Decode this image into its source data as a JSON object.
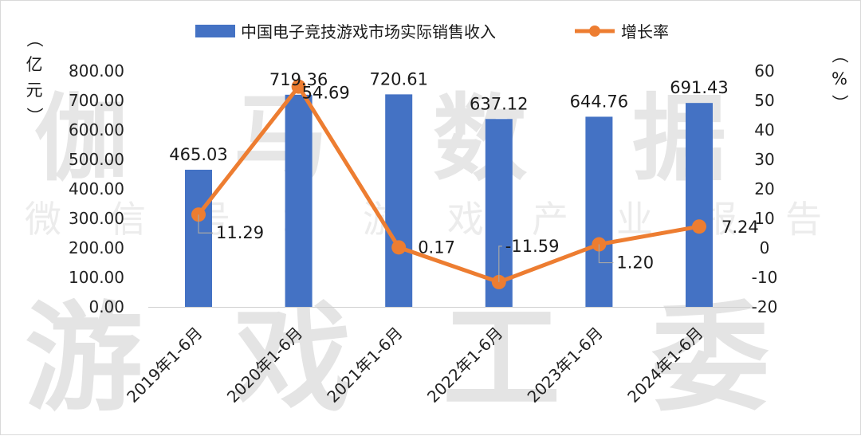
{
  "chart_data": {
    "type": "bar",
    "categories": [
      "2019年1-6月",
      "2020年1-6月",
      "2021年1-6月",
      "2022年1-6月",
      "2023年1-6月",
      "2024年1-6月"
    ],
    "series": [
      {
        "name": "中国电子竞技游戏市场实际销售收入",
        "type": "bar",
        "axis": "left",
        "values": [
          465.03,
          719.36,
          720.61,
          637.12,
          644.76,
          691.43
        ],
        "color": "#4472c4"
      },
      {
        "name": "增长率",
        "type": "line",
        "axis": "right",
        "values": [
          11.29,
          54.69,
          0.17,
          -11.59,
          1.2,
          7.24
        ],
        "color": "#ed7d31"
      }
    ],
    "bar_labels": [
      "465.03",
      "719.36",
      "720.61",
      "637.12",
      "644.76",
      "691.43"
    ],
    "line_labels": [
      "11.29",
      "54.69",
      "0.17",
      "-11.59",
      "1.20",
      "7.24"
    ],
    "ylabel": "（亿元）",
    "ylabel_right": "（%）",
    "ylim": [
      0,
      800
    ],
    "ylim_right": [
      -20,
      60
    ],
    "y_ticks": [
      "0.00",
      "100.00",
      "200.00",
      "300.00",
      "400.00",
      "500.00",
      "600.00",
      "700.00",
      "800.00"
    ],
    "y_ticks_right": [
      "-20",
      "-10",
      "0",
      "10",
      "20",
      "30",
      "40",
      "50",
      "60"
    ],
    "legend_position": "top",
    "grid": false
  },
  "watermark": {
    "line1": "伽马数据",
    "line2": "微信号：游戏产业报告",
    "line3": "游戏工委"
  }
}
